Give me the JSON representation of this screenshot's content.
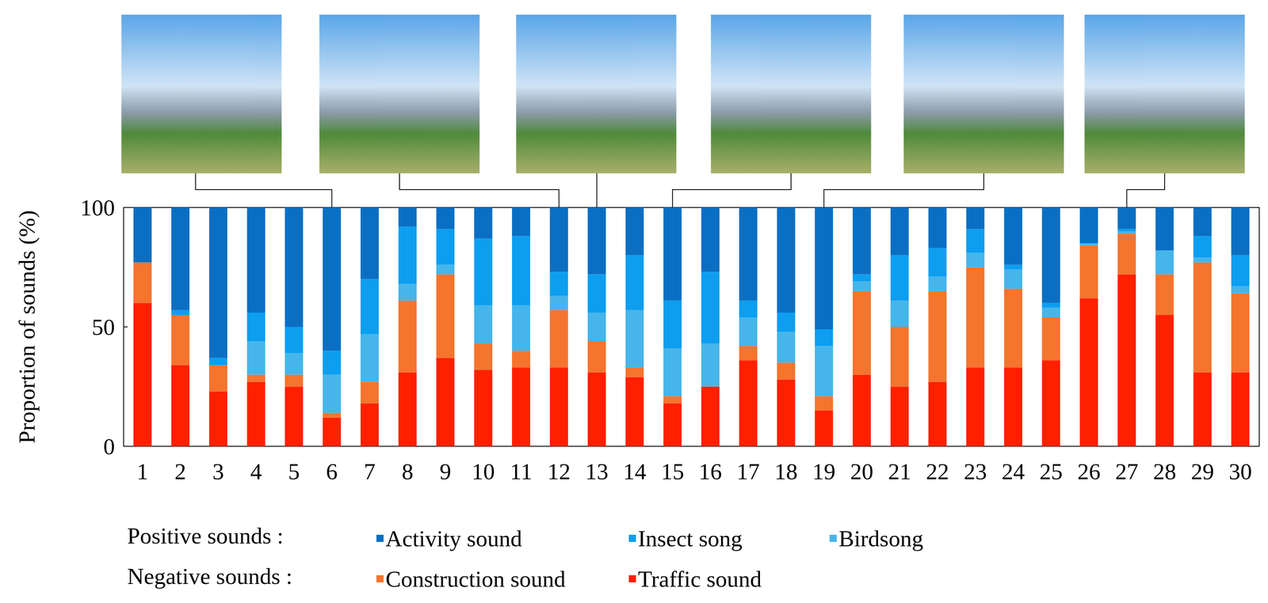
{
  "chart_data": {
    "type": "bar",
    "stacked": true,
    "grid": false,
    "legend": "bottom",
    "y_label": "Proportion of sounds (%)",
    "ylim": [
      0,
      100
    ],
    "yticks": [
      0,
      50,
      100
    ],
    "categories": [
      "1",
      "2",
      "3",
      "4",
      "5",
      "6",
      "7",
      "8",
      "9",
      "10",
      "11",
      "12",
      "13",
      "14",
      "15",
      "16",
      "17",
      "18",
      "19",
      "20",
      "21",
      "22",
      "23",
      "24",
      "25",
      "26",
      "27",
      "28",
      "29",
      "30"
    ],
    "series": [
      {
        "name": "Traffic sound",
        "group": "Negative sounds :",
        "color": "#ff2000",
        "values": [
          60,
          34,
          23,
          27,
          25,
          12,
          18,
          31,
          37,
          32,
          33,
          33,
          31,
          29,
          18,
          25,
          36,
          28,
          15,
          30,
          25,
          27,
          33,
          33,
          36,
          62,
          72,
          55,
          31,
          31
        ]
      },
      {
        "name": "Construction sound",
        "group": "Negative sounds :",
        "color": "#f5742e",
        "values": [
          17,
          21,
          11,
          3,
          5,
          2,
          9,
          30,
          35,
          11,
          7,
          24,
          13,
          4,
          3,
          0,
          6,
          7,
          6,
          35,
          25,
          38,
          42,
          33,
          18,
          22,
          17,
          17,
          46,
          33
        ]
      },
      {
        "name": "Birdsong",
        "group": "Positive sounds :",
        "color": "#45b5ea",
        "values": [
          0,
          0,
          0,
          14,
          9,
          16,
          20,
          7,
          4,
          16,
          19,
          6,
          12,
          24,
          20,
          18,
          12,
          13,
          21,
          4,
          11,
          6,
          6,
          8,
          4,
          1,
          1,
          10,
          2,
          3
        ]
      },
      {
        "name": "Insect song",
        "group": "Positive sounds :",
        "color": "#0d9ef0",
        "values": [
          0,
          2,
          3,
          12,
          11,
          10,
          23,
          24,
          15,
          28,
          29,
          10,
          16,
          23,
          20,
          30,
          7,
          8,
          7,
          3,
          19,
          12,
          10,
          2,
          2,
          0,
          1,
          0,
          9,
          13
        ]
      },
      {
        "name": "Activity sound",
        "group": "Positive sounds :",
        "color": "#0a6fc2",
        "values": [
          23,
          43,
          63,
          44,
          50,
          60,
          30,
          8,
          9,
          13,
          12,
          27,
          28,
          20,
          39,
          27,
          39,
          44,
          51,
          28,
          20,
          17,
          9,
          24,
          40,
          15,
          9,
          18,
          12,
          20
        ]
      }
    ]
  }
}
